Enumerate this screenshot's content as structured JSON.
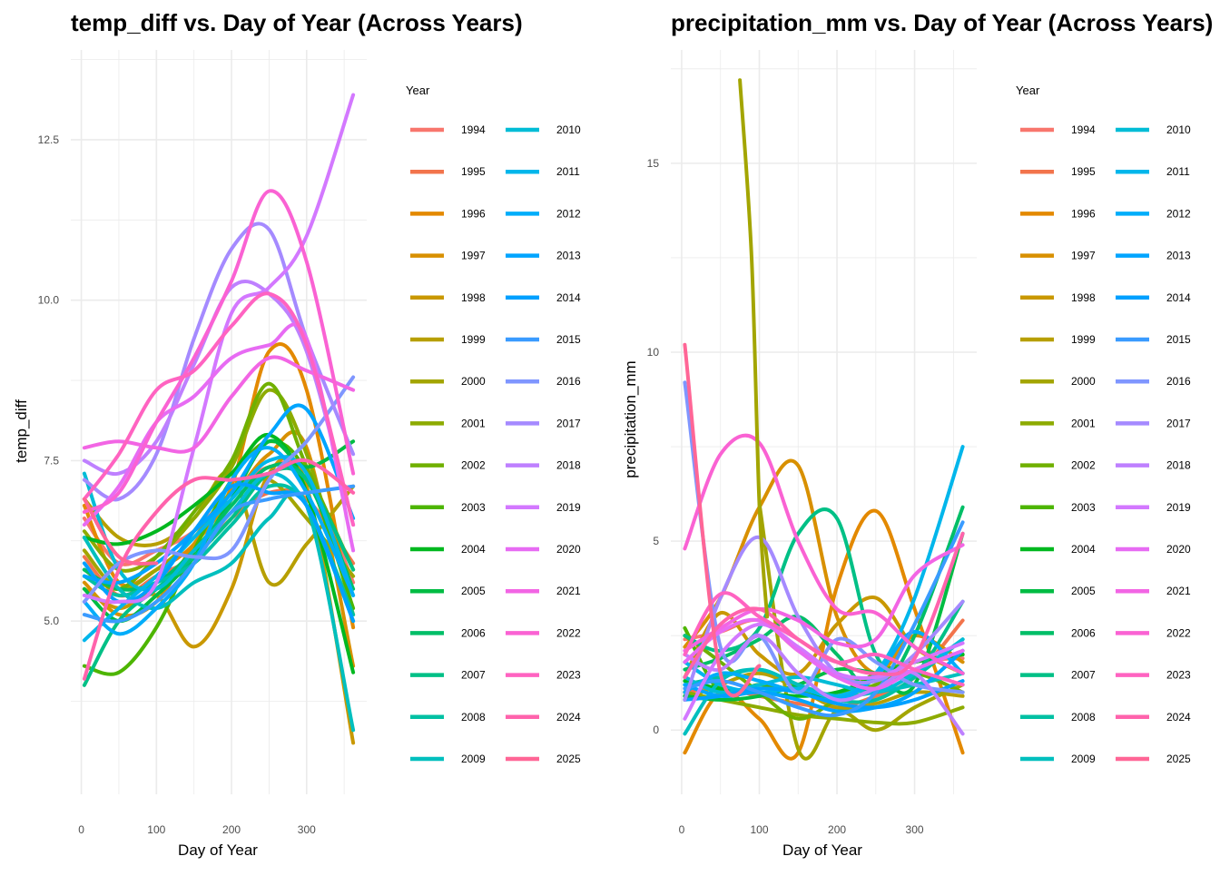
{
  "chart_data": [
    {
      "type": "line",
      "title": "temp_diff vs. Day of Year (Across Years)",
      "xlabel": "Day of Year",
      "ylabel": "temp_diff",
      "xlim": [
        -14,
        380
      ],
      "ylim": [
        2.3,
        13.9
      ],
      "xticks": [
        0,
        100,
        200,
        300
      ],
      "yticks": [
        5.0,
        7.5,
        10.0,
        12.5
      ],
      "ytick_labels": [
        "5.0",
        "7.5",
        "10.0",
        "12.5"
      ],
      "grid": true,
      "legend_title": "Year",
      "legend_placement": "right",
      "x": [
        4,
        50,
        100,
        150,
        200,
        250,
        300,
        362
      ],
      "series": [
        {
          "name": "1994",
          "color": "#F8766D",
          "values": [
            6.6,
            5.9,
            6.1,
            6.4,
            7.0,
            7.4,
            7.3,
            5.6
          ]
        },
        {
          "name": "1995",
          "color": "#F2744C",
          "values": [
            6.0,
            5.4,
            5.7,
            6.0,
            6.6,
            7.0,
            6.9,
            5.9
          ]
        },
        {
          "name": "1996",
          "color": "#E38900",
          "values": [
            6.8,
            5.6,
            5.8,
            6.2,
            7.1,
            9.2,
            8.6,
            4.9
          ]
        },
        {
          "name": "1997",
          "color": "#D89000",
          "values": [
            5.6,
            5.1,
            5.3,
            6.2,
            6.9,
            7.6,
            7.7,
            4.3
          ]
        },
        {
          "name": "1998",
          "color": "#C99800",
          "values": [
            5.5,
            5.2,
            5.4,
            4.6,
            5.5,
            7.3,
            7.1,
            3.1
          ]
        },
        {
          "name": "1999",
          "color": "#B79F00",
          "values": [
            6.9,
            6.3,
            6.2,
            6.6,
            7.3,
            5.6,
            6.2,
            7.1
          ]
        },
        {
          "name": "2000",
          "color": "#A3A500",
          "values": [
            6.1,
            5.5,
            5.8,
            6.3,
            7.0,
            7.2,
            6.6,
            5.7
          ]
        },
        {
          "name": "2001",
          "color": "#8DAB00",
          "values": [
            6.4,
            5.8,
            6.0,
            6.6,
            7.4,
            8.6,
            7.6,
            5.1
          ]
        },
        {
          "name": "2002",
          "color": "#70B000",
          "values": [
            5.8,
            5.5,
            6.0,
            6.7,
            7.5,
            8.7,
            7.4,
            5.8
          ]
        },
        {
          "name": "2003",
          "color": "#4DB500",
          "values": [
            4.3,
            4.2,
            4.9,
            6.1,
            7.2,
            7.8,
            7.3,
            5.2
          ]
        },
        {
          "name": "2004",
          "color": "#00B81F",
          "values": [
            6.3,
            6.2,
            6.4,
            6.8,
            7.3,
            7.9,
            7.0,
            4.2
          ]
        },
        {
          "name": "2005",
          "color": "#00BC43",
          "values": [
            5.5,
            5.0,
            5.4,
            6.0,
            6.9,
            7.8,
            7.4,
            7.8
          ]
        },
        {
          "name": "2006",
          "color": "#00BE67",
          "values": [
            5.8,
            5.5,
            5.6,
            6.1,
            6.8,
            7.4,
            7.2,
            5.5
          ]
        },
        {
          "name": "2007",
          "color": "#00C086",
          "values": [
            4.0,
            5.0,
            5.5,
            6.0,
            6.6,
            7.3,
            7.2,
            5.8
          ]
        },
        {
          "name": "2008",
          "color": "#00C0A3",
          "values": [
            5.7,
            5.4,
            5.6,
            5.9,
            6.5,
            7.1,
            6.8,
            5.1
          ]
        },
        {
          "name": "2009",
          "color": "#00BFBE",
          "values": [
            6.3,
            5.5,
            5.2,
            5.6,
            5.9,
            6.6,
            6.8,
            3.3
          ]
        },
        {
          "name": "2010",
          "color": "#00BCD6",
          "values": [
            7.3,
            5.8,
            5.5,
            6.1,
            6.7,
            7.3,
            6.8,
            5.0
          ]
        },
        {
          "name": "2011",
          "color": "#00B6EB",
          "values": [
            4.7,
            5.2,
            5.7,
            6.3,
            6.9,
            7.5,
            7.3,
            5.4
          ]
        },
        {
          "name": "2012",
          "color": "#00ADFA",
          "values": [
            5.3,
            4.8,
            5.2,
            5.9,
            7.2,
            7.7,
            7.0,
            5.4
          ]
        },
        {
          "name": "2013",
          "color": "#00A5FF",
          "values": [
            5.7,
            5.6,
            5.9,
            6.4,
            7.0,
            7.9,
            8.3,
            6.6
          ]
        },
        {
          "name": "2014",
          "color": "#00A0FF",
          "values": [
            5.9,
            5.3,
            5.6,
            6.4,
            7.1,
            7.0,
            6.8,
            5.0
          ]
        },
        {
          "name": "2015",
          "color": "#3A9BFF",
          "values": [
            5.1,
            5.0,
            5.3,
            5.9,
            6.7,
            6.9,
            7.0,
            7.1
          ]
        },
        {
          "name": "2016",
          "color": "#7F96FF",
          "values": [
            5.3,
            5.9,
            6.1,
            6.0,
            6.1,
            7.2,
            7.8,
            8.8
          ]
        },
        {
          "name": "2017",
          "color": "#A58AFF",
          "values": [
            7.2,
            6.9,
            7.6,
            9.4,
            10.8,
            11.1,
            9.4,
            7.6
          ]
        },
        {
          "name": "2018",
          "color": "#BE80FF",
          "values": [
            7.5,
            7.3,
            7.8,
            9.0,
            10.2,
            10.1,
            9.2,
            6.5
          ]
        },
        {
          "name": "2019",
          "color": "#D378FF",
          "values": [
            5.4,
            5.3,
            5.6,
            7.7,
            9.8,
            10.2,
            11.0,
            13.2
          ]
        },
        {
          "name": "2020",
          "color": "#E76BF3",
          "values": [
            6.5,
            7.1,
            8.1,
            8.5,
            9.1,
            9.3,
            9.4,
            6.1
          ]
        },
        {
          "name": "2021",
          "color": "#F265E4",
          "values": [
            7.7,
            7.8,
            7.7,
            7.7,
            8.5,
            9.1,
            8.9,
            8.6
          ]
        },
        {
          "name": "2022",
          "color": "#FA62D3",
          "values": [
            6.7,
            7.0,
            8.1,
            9.1,
            10.3,
            11.7,
            10.6,
            7.3
          ]
        },
        {
          "name": "2023",
          "color": "#FF63C1",
          "values": [
            6.9,
            7.6,
            8.6,
            8.9,
            9.6,
            10.1,
            9.3,
            6.5
          ]
        },
        {
          "name": "2024",
          "color": "#FF63AC",
          "values": [
            4.1,
            5.8,
            6.7,
            7.2,
            7.2,
            7.3,
            7.5,
            7.0
          ]
        },
        {
          "name": "2025",
          "color": "#FF6696",
          "values": [
            6.9,
            6.0,
            5.9,
            null,
            null,
            null,
            null,
            null
          ]
        }
      ]
    },
    {
      "type": "line",
      "title": "precipitation_mm vs. Day of Year (Across Years)",
      "xlabel": "Day of Year",
      "ylabel": "precipitation_mm",
      "xlim": [
        -14,
        380
      ],
      "ylim": [
        -1.7,
        18.0
      ],
      "xticks": [
        0,
        100,
        200,
        300
      ],
      "yticks": [
        0,
        5,
        10,
        15
      ],
      "ytick_labels": [
        "0",
        "5",
        "10",
        "15"
      ],
      "grid": true,
      "legend_title": "Year",
      "legend_placement": "right",
      "x": [
        4,
        50,
        100,
        150,
        200,
        250,
        300,
        362
      ],
      "series": [
        {
          "name": "1994",
          "color": "#F8766D",
          "values": [
            2.4,
            2.6,
            2.9,
            2.1,
            1.5,
            1.3,
            1.8,
            1.9
          ]
        },
        {
          "name": "1995",
          "color": "#F2744C",
          "values": [
            1.0,
            1.1,
            0.9,
            0.7,
            0.6,
            0.9,
            1.4,
            2.9
          ]
        },
        {
          "name": "1996",
          "color": "#E38900",
          "values": [
            -0.6,
            1.0,
            0.3,
            -0.6,
            3.8,
            5.8,
            3.2,
            -0.6
          ]
        },
        {
          "name": "1997",
          "color": "#D89000",
          "values": [
            2.2,
            3.5,
            5.9,
            7.0,
            3.0,
            1.5,
            2.5,
            1.8
          ]
        },
        {
          "name": "1998",
          "color": "#C99800",
          "values": [
            1.4,
            3.1,
            2.0,
            1.5,
            2.8,
            3.5,
            2.2,
            1.5
          ]
        },
        {
          "name": "1999",
          "color": "#B79F00",
          "values": [
            0.8,
            1.2,
            1.5,
            1.1,
            0.6,
            0.7,
            1.0,
            0.9
          ]
        },
        {
          "name": "2000",
          "color": "#A3A500",
          "values": [
            null,
            null,
            6.0,
            -0.5,
            0.5,
            0.0,
            0.6,
            1.2
          ]
        },
        {
          "name": "2001",
          "color": "#8DAB00",
          "values": [
            1.0,
            0.8,
            0.6,
            0.4,
            0.3,
            0.2,
            0.2,
            0.6
          ]
        },
        {
          "name": "2002",
          "color": "#70B000",
          "values": [
            2.5,
            1.8,
            1.0,
            0.3,
            0.8,
            1.2,
            1.5,
            1.0
          ]
        },
        {
          "name": "2003",
          "color": "#4DB500",
          "values": [
            2.7,
            1.0,
            1.2,
            1.0,
            0.9,
            1.5,
            1.8,
            2.0
          ]
        },
        {
          "name": "2004",
          "color": "#00B81F",
          "values": [
            1.3,
            1.1,
            1.0,
            0.9,
            1.0,
            1.4,
            1.8,
            2.0
          ]
        },
        {
          "name": "2005",
          "color": "#00BC43",
          "values": [
            0.9,
            0.8,
            0.9,
            1.2,
            1.6,
            1.5,
            1.2,
            5.2
          ]
        },
        {
          "name": "2006",
          "color": "#00BE67",
          "values": [
            1.6,
            1.9,
            2.4,
            3.0,
            2.0,
            1.0,
            2.5,
            5.9
          ]
        },
        {
          "name": "2007",
          "color": "#00C086",
          "values": [
            2.5,
            2.1,
            2.7,
            5.2,
            5.6,
            2.0,
            1.5,
            3.4
          ]
        },
        {
          "name": "2008",
          "color": "#00C0A3",
          "values": [
            1.2,
            1.4,
            1.6,
            1.2,
            0.8,
            0.8,
            1.4,
            2.4
          ]
        },
        {
          "name": "2009",
          "color": "#00BFBE",
          "values": [
            -0.1,
            1.3,
            1.6,
            1.2,
            0.9,
            1.0,
            1.2,
            1.5
          ]
        },
        {
          "name": "2010",
          "color": "#00BCD6",
          "values": [
            1.4,
            1.0,
            1.2,
            1.4,
            1.2,
            1.0,
            1.5,
            2.4
          ]
        },
        {
          "name": "2011",
          "color": "#00B6EB",
          "values": [
            1.8,
            1.2,
            1.0,
            1.1,
            0.9,
            1.5,
            3.5,
            7.5
          ]
        },
        {
          "name": "2012",
          "color": "#00ADFA",
          "values": [
            1.0,
            1.5,
            1.3,
            1.0,
            0.8,
            1.4,
            2.6,
            1.5
          ]
        },
        {
          "name": "2013",
          "color": "#00A5FF",
          "values": [
            1.2,
            0.9,
            1.0,
            0.8,
            0.5,
            0.6,
            1.0,
            2.1
          ]
        },
        {
          "name": "2014",
          "color": "#00A0FF",
          "values": [
            0.8,
            0.9,
            1.1,
            1.0,
            0.7,
            0.6,
            0.8,
            1.3
          ]
        },
        {
          "name": "2015",
          "color": "#3A9BFF",
          "values": [
            1.1,
            1.3,
            1.0,
            0.6,
            0.4,
            1.0,
            2.8,
            5.5
          ]
        },
        {
          "name": "2016",
          "color": "#7F96FF",
          "values": [
            9.2,
            2.2,
            2.5,
            1.0,
            2.4,
            1.8,
            1.2,
            1.0
          ]
        },
        {
          "name": "2017",
          "color": "#A58AFF",
          "values": [
            0.8,
            3.5,
            5.1,
            3.0,
            1.5,
            1.3,
            2.0,
            3.4
          ]
        },
        {
          "name": "2018",
          "color": "#BE80FF",
          "values": [
            2.0,
            1.6,
            2.5,
            1.5,
            0.8,
            1.1,
            1.5,
            -0.1
          ]
        },
        {
          "name": "2019",
          "color": "#D378FF",
          "values": [
            0.3,
            2.0,
            2.8,
            2.2,
            1.5,
            1.4,
            1.8,
            2.3
          ]
        },
        {
          "name": "2020",
          "color": "#E76BF3",
          "values": [
            1.8,
            2.6,
            2.9,
            2.1,
            1.4,
            1.1,
            1.6,
            2.1
          ]
        },
        {
          "name": "2021",
          "color": "#F265E4",
          "values": [
            2.1,
            2.7,
            3.2,
            2.9,
            2.3,
            2.4,
            4.1,
            4.9
          ]
        },
        {
          "name": "2022",
          "color": "#FA62D3",
          "values": [
            4.8,
            7.3,
            7.6,
            5.0,
            3.2,
            3.1,
            2.2,
            1.5
          ]
        },
        {
          "name": "2023",
          "color": "#FF63C1",
          "values": [
            2.0,
            3.6,
            3.0,
            2.4,
            1.8,
            2.0,
            1.6,
            1.2
          ]
        },
        {
          "name": "2024",
          "color": "#FF63AC",
          "values": [
            1.4,
            2.8,
            3.2,
            2.4,
            1.8,
            1.5,
            1.9,
            5.2
          ]
        },
        {
          "name": "2025",
          "color": "#FF6696",
          "values": [
            10.2,
            1.5,
            1.7,
            null,
            null,
            null,
            null,
            null
          ]
        }
      ],
      "extra_series": [
        {
          "name": "2000",
          "color": "#A3A500",
          "x": [
            75,
            90,
            100,
            110
          ],
          "values": [
            17.2,
            12.5,
            6.0,
            3.0
          ]
        }
      ]
    }
  ]
}
